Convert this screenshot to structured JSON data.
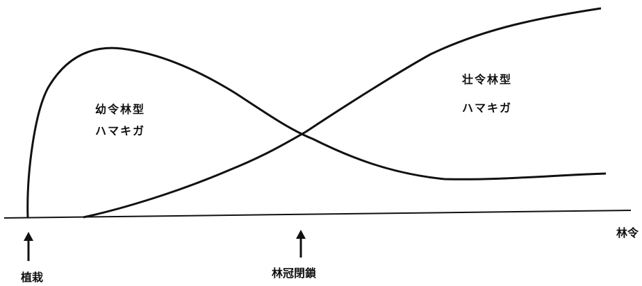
{
  "diagram": {
    "x_axis_label": "林令",
    "curves": [
      {
        "id": "young",
        "title": "幼令林型",
        "pest": "ハマキガ",
        "color": "#111111"
      },
      {
        "id": "mature",
        "title": "壮令林型",
        "pest": "ハマキガ",
        "color": "#111111"
      }
    ],
    "markers": [
      {
        "id": "planting",
        "label": "植栽"
      },
      {
        "id": "closure",
        "label": "林冠閉鎖"
      }
    ]
  }
}
